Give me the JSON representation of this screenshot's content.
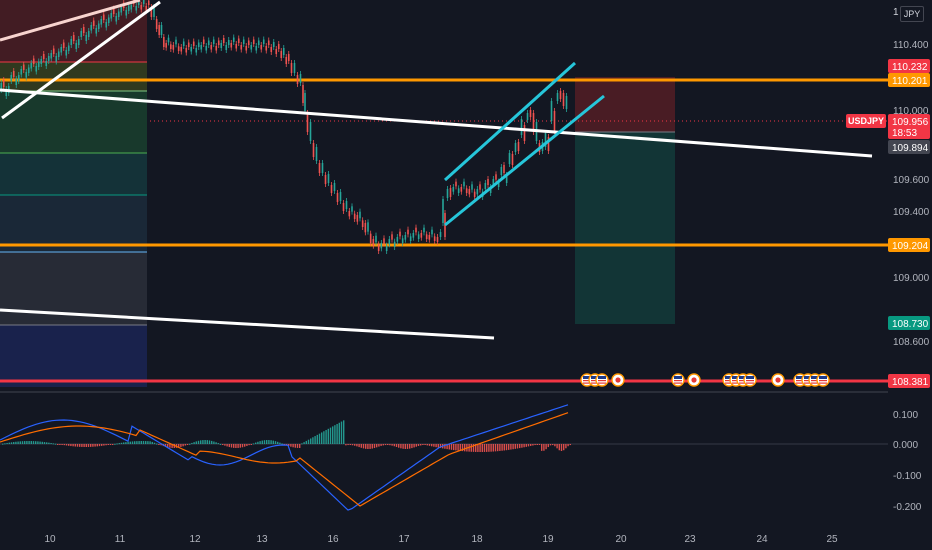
{
  "currency": "JPY",
  "scale_top": "1",
  "symbol": "USDJPY",
  "price_axis": [
    "110.400",
    "110.000",
    "109.600",
    "109.400",
    "109.000",
    "108.600"
  ],
  "price_tags": [
    {
      "id": "level-110232",
      "text": "110.232",
      "color": "#f23645"
    },
    {
      "id": "level-110201",
      "text": "110.201",
      "color": "#ff9800"
    },
    {
      "id": "last-price",
      "text": "109.956",
      "color": "#f23645"
    },
    {
      "id": "countdown",
      "text": "18:53",
      "color": "#f23645"
    },
    {
      "id": "level-109894",
      "text": "109.894",
      "color": "#434651"
    },
    {
      "id": "level-109204",
      "text": "109.204",
      "color": "#ff9800"
    },
    {
      "id": "level-108730",
      "text": "108.730",
      "color": "#089981"
    },
    {
      "id": "level-108381",
      "text": "108.381",
      "color": "#f23645"
    }
  ],
  "x_axis": [
    "10",
    "11",
    "12",
    "13",
    "16",
    "17",
    "18",
    "19",
    "20",
    "23",
    "24",
    "25"
  ],
  "macd_axis": [
    "0.100",
    "0.000",
    "-0.100",
    "-0.200"
  ],
  "colors": {
    "background": "#131722",
    "up": "#26a69a",
    "down": "#ef5350",
    "orange": "#ff9800",
    "red_line": "#f23645",
    "channel": "#26c6da",
    "trend": "#ffffff",
    "macd": "#2962ff",
    "signal": "#ff6d00"
  },
  "icons": [
    "us-flag-icon",
    "us-flag-icon",
    "us-flag-icon",
    "japan-flag-icon",
    "us-flag-icon",
    "japan-flag-icon",
    "us-flag-icon",
    "us-flag-icon",
    "us-flag-icon",
    "japan-flag-icon",
    "us-flag-icon",
    "us-flag-icon",
    "us-flag-icon"
  ]
}
